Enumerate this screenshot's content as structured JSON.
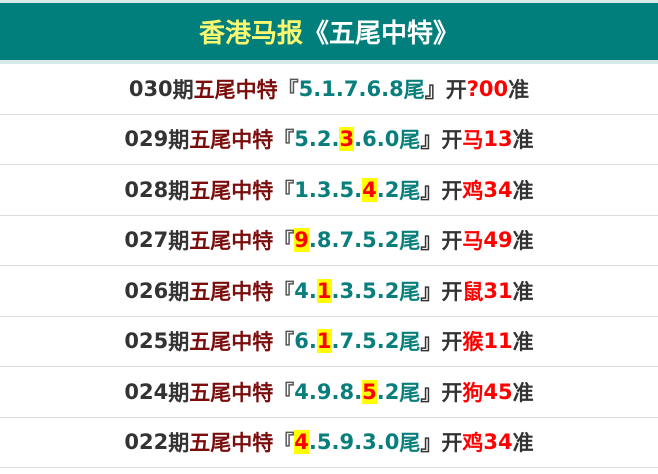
{
  "header": {
    "title_main": "香港马报",
    "title_sub": "《五尾中特》"
  },
  "colors": {
    "header_bg": "#017f7c",
    "title_main": "#f9f871",
    "digits": "#087f7c",
    "hit_highlight": "#ffff00",
    "result": "#ff0000",
    "label": "#7a0c0c"
  },
  "labels": {
    "period_suffix": "期",
    "category": "五尾中特",
    "open_bracket": "『",
    "tail_suffix": "尾",
    "close_bracket": "』",
    "open_label": "开",
    "accurate": "准"
  },
  "rows": [
    {
      "period": "030",
      "digits": [
        "5",
        "1",
        "7",
        "6",
        "8"
      ],
      "hit": -1,
      "animal": "?",
      "number": " 00"
    },
    {
      "period": "029",
      "digits": [
        "5",
        "2",
        "3",
        "6",
        "0"
      ],
      "hit": 2,
      "animal": "马",
      "number": "13"
    },
    {
      "period": "028",
      "digits": [
        "1",
        "3",
        "5",
        "4",
        "2"
      ],
      "hit": 3,
      "animal": "鸡",
      "number": "34"
    },
    {
      "period": "027",
      "digits": [
        "9",
        "8",
        "7",
        "5",
        "2"
      ],
      "hit": 0,
      "animal": "马",
      "number": "49"
    },
    {
      "period": "026",
      "digits": [
        "4",
        "1",
        "3",
        "5",
        "2"
      ],
      "hit": 1,
      "animal": "鼠",
      "number": "31"
    },
    {
      "period": "025",
      "digits": [
        "6",
        "1",
        "7",
        "5",
        "2"
      ],
      "hit": 1,
      "animal": "猴",
      "number": "11"
    },
    {
      "period": "024",
      "digits": [
        "4",
        "9",
        "8",
        "5",
        "2"
      ],
      "hit": 3,
      "animal": "狗",
      "number": "45"
    },
    {
      "period": "022",
      "digits": [
        "4",
        "5",
        "9",
        "3",
        "0"
      ],
      "hit": 0,
      "animal": "鸡",
      "number": "34"
    }
  ]
}
